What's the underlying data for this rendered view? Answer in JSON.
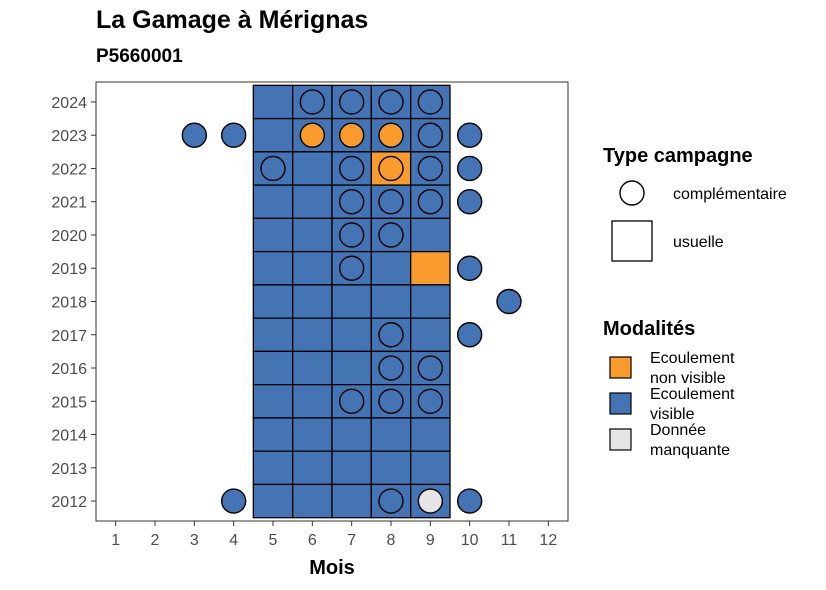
{
  "title": "La Gamage à Mérignas",
  "subtitle": "P5660001",
  "chart_data": {
    "type": "heatmap",
    "xlabel": "Mois",
    "x_ticks": [
      "1",
      "2",
      "3",
      "4",
      "5",
      "6",
      "7",
      "8",
      "9",
      "10",
      "11",
      "12"
    ],
    "y_ticks": [
      "2012",
      "2013",
      "2014",
      "2015",
      "2016",
      "2017",
      "2018",
      "2019",
      "2020",
      "2021",
      "2022",
      "2023",
      "2024"
    ],
    "xlim": [
      0.5,
      12.5
    ],
    "ylim": [
      2011.4,
      2024.6
    ],
    "grid": false,
    "legend_position": "right",
    "colors": {
      "Ecoulement non visible": "#f99b2f",
      "Ecoulement visible": "#4574b5",
      "Donnée manquante": "#e5e5e5"
    },
    "legend_shape": {
      "title": "Type campagne",
      "items": [
        {
          "label": "complémentaire",
          "shape": "circle"
        },
        {
          "label": "usuelle",
          "shape": "square"
        }
      ]
    },
    "legend_fill": {
      "title": "Modalités",
      "items": [
        {
          "label_lines": [
            "Ecoulement",
            "non visible"
          ],
          "color": "#f99b2f"
        },
        {
          "label_lines": [
            "Ecoulement",
            "visible"
          ],
          "color": "#4574b5"
        },
        {
          "label_lines": [
            "Donnée",
            "manquante"
          ],
          "color": "#e5e5e5"
        }
      ]
    },
    "usuelle": [
      {
        "year": 2024,
        "months": [
          5,
          6,
          7,
          8,
          9
        ],
        "values": [
          "visible",
          "visible",
          "visible",
          "visible",
          "visible"
        ]
      },
      {
        "year": 2023,
        "months": [
          5,
          6,
          7,
          8,
          9
        ],
        "values": [
          "visible",
          "visible",
          "visible",
          "visible",
          "visible"
        ]
      },
      {
        "year": 2022,
        "months": [
          5,
          6,
          7,
          8,
          9
        ],
        "values": [
          "visible",
          "visible",
          "visible",
          "non visible",
          "visible"
        ]
      },
      {
        "year": 2021,
        "months": [
          5,
          6,
          7,
          8,
          9
        ],
        "values": [
          "visible",
          "visible",
          "visible",
          "visible",
          "visible"
        ]
      },
      {
        "year": 2020,
        "months": [
          5,
          6,
          7,
          8,
          9
        ],
        "values": [
          "visible",
          "visible",
          "visible",
          "visible",
          "visible"
        ]
      },
      {
        "year": 2019,
        "months": [
          5,
          6,
          7,
          8,
          9
        ],
        "values": [
          "visible",
          "visible",
          "visible",
          "visible",
          "non visible"
        ]
      },
      {
        "year": 2018,
        "months": [
          5,
          6,
          7,
          8,
          9
        ],
        "values": [
          "visible",
          "visible",
          "visible",
          "visible",
          "visible"
        ]
      },
      {
        "year": 2017,
        "months": [
          5,
          6,
          7,
          8,
          9
        ],
        "values": [
          "visible",
          "visible",
          "visible",
          "visible",
          "visible"
        ]
      },
      {
        "year": 2016,
        "months": [
          5,
          6,
          7,
          8,
          9
        ],
        "values": [
          "visible",
          "visible",
          "visible",
          "visible",
          "visible"
        ]
      },
      {
        "year": 2015,
        "months": [
          5,
          6,
          7,
          8,
          9
        ],
        "values": [
          "visible",
          "visible",
          "visible",
          "visible",
          "visible"
        ]
      },
      {
        "year": 2014,
        "months": [
          5,
          6,
          7,
          8,
          9
        ],
        "values": [
          "visible",
          "visible",
          "visible",
          "visible",
          "visible"
        ]
      },
      {
        "year": 2013,
        "months": [
          5,
          6,
          7,
          8,
          9
        ],
        "values": [
          "visible",
          "visible",
          "visible",
          "visible",
          "visible"
        ]
      },
      {
        "year": 2012,
        "months": [
          5,
          6,
          7,
          8,
          9
        ],
        "values": [
          "visible",
          "visible",
          "visible",
          "visible",
          "visible"
        ]
      }
    ],
    "complementaire": [
      {
        "year": 2024,
        "month": 6,
        "value": "visible"
      },
      {
        "year": 2024,
        "month": 7,
        "value": "visible"
      },
      {
        "year": 2024,
        "month": 8,
        "value": "visible"
      },
      {
        "year": 2024,
        "month": 9,
        "value": "visible"
      },
      {
        "year": 2023,
        "month": 3,
        "value": "visible"
      },
      {
        "year": 2023,
        "month": 4,
        "value": "visible"
      },
      {
        "year": 2023,
        "month": 6,
        "value": "non visible"
      },
      {
        "year": 2023,
        "month": 7,
        "value": "non visible"
      },
      {
        "year": 2023,
        "month": 8,
        "value": "non visible"
      },
      {
        "year": 2023,
        "month": 9,
        "value": "visible"
      },
      {
        "year": 2023,
        "month": 10,
        "value": "visible"
      },
      {
        "year": 2022,
        "month": 5,
        "value": "visible"
      },
      {
        "year": 2022,
        "month": 7,
        "value": "visible"
      },
      {
        "year": 2022,
        "month": 8,
        "value": "non visible"
      },
      {
        "year": 2022,
        "month": 9,
        "value": "visible"
      },
      {
        "year": 2022,
        "month": 10,
        "value": "visible"
      },
      {
        "year": 2021,
        "month": 7,
        "value": "visible"
      },
      {
        "year": 2021,
        "month": 8,
        "value": "visible"
      },
      {
        "year": 2021,
        "month": 9,
        "value": "visible"
      },
      {
        "year": 2021,
        "month": 10,
        "value": "visible"
      },
      {
        "year": 2020,
        "month": 7,
        "value": "visible"
      },
      {
        "year": 2020,
        "month": 8,
        "value": "visible"
      },
      {
        "year": 2019,
        "month": 7,
        "value": "visible"
      },
      {
        "year": 2019,
        "month": 10,
        "value": "visible"
      },
      {
        "year": 2018,
        "month": 11,
        "value": "visible"
      },
      {
        "year": 2017,
        "month": 8,
        "value": "visible"
      },
      {
        "year": 2017,
        "month": 10,
        "value": "visible"
      },
      {
        "year": 2016,
        "month": 8,
        "value": "visible"
      },
      {
        "year": 2016,
        "month": 9,
        "value": "visible"
      },
      {
        "year": 2015,
        "month": 7,
        "value": "visible"
      },
      {
        "year": 2015,
        "month": 8,
        "value": "visible"
      },
      {
        "year": 2015,
        "month": 9,
        "value": "visible"
      },
      {
        "year": 2012,
        "month": 4,
        "value": "visible"
      },
      {
        "year": 2012,
        "month": 8,
        "value": "visible"
      },
      {
        "year": 2012,
        "month": 9,
        "value": "manquante"
      },
      {
        "year": 2012,
        "month": 10,
        "value": "visible"
      }
    ]
  }
}
